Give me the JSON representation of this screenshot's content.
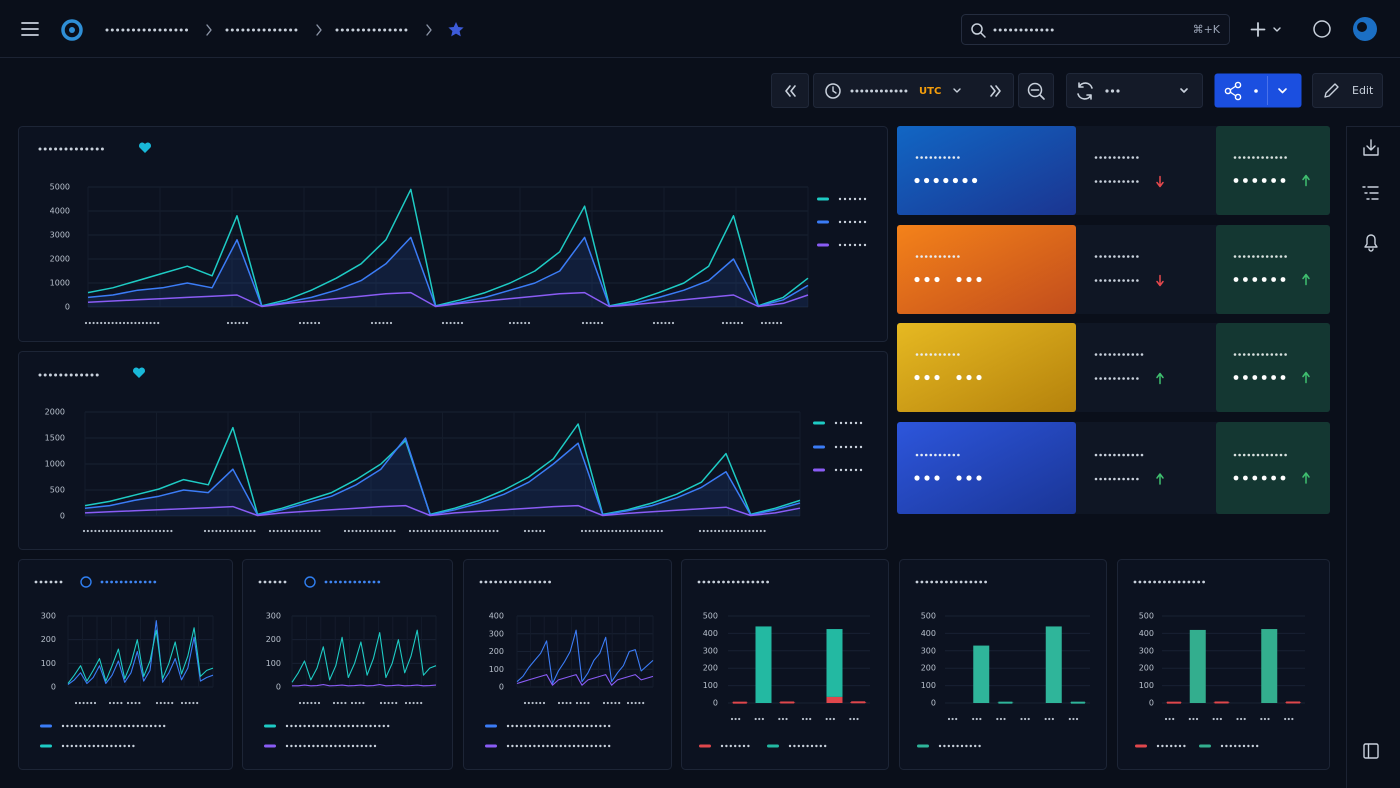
{
  "topbar": {
    "search_shortcut": "⌘+K"
  },
  "toolbar": {
    "timezone": "UTC",
    "edit": "Edit"
  },
  "chart_data": [
    {
      "type": "line",
      "ylim": [
        0,
        5000
      ],
      "yticks": [
        0,
        1000,
        2000,
        3000,
        4000,
        5000
      ],
      "grid": true,
      "series": [
        {
          "color": "#1ecbc4",
          "values": [
            600,
            800,
            1100,
            1400,
            1700,
            1300,
            3800,
            50,
            300,
            700,
            1200,
            1800,
            2800,
            4900,
            50,
            300,
            600,
            1000,
            1500,
            2300,
            4200,
            50,
            250,
            600,
            1000,
            1700,
            3800,
            50,
            400,
            1200
          ]
        },
        {
          "color": "#3b7cf6",
          "values": [
            400,
            500,
            700,
            800,
            1000,
            800,
            2800,
            30,
            200,
            400,
            700,
            1100,
            1800,
            2900,
            30,
            200,
            400,
            700,
            1000,
            1500,
            2900,
            30,
            150,
            400,
            700,
            1100,
            2000,
            30,
            300,
            900
          ]
        },
        {
          "color": "#8a5cf5",
          "values": [
            200,
            250,
            300,
            350,
            400,
            450,
            500,
            20,
            150,
            250,
            350,
            450,
            550,
            600,
            20,
            150,
            250,
            350,
            450,
            550,
            600,
            20,
            100,
            200,
            300,
            400,
            500,
            20,
            150,
            500
          ]
        }
      ]
    },
    {
      "type": "line",
      "ylim": [
        0,
        2000
      ],
      "yticks": [
        0,
        500,
        1000,
        1500,
        2000
      ],
      "grid": true,
      "series": [
        {
          "color": "#1ecbc4",
          "values": [
            200,
            280,
            400,
            520,
            700,
            600,
            1700,
            30,
            150,
            300,
            450,
            700,
            1000,
            1450,
            30,
            150,
            300,
            500,
            750,
            1100,
            1770,
            30,
            120,
            250,
            420,
            650,
            1200,
            30,
            150,
            300
          ]
        },
        {
          "color": "#3b7cf6",
          "values": [
            150,
            200,
            300,
            380,
            500,
            450,
            900,
            20,
            120,
            250,
            380,
            600,
            900,
            1500,
            20,
            120,
            250,
            420,
            650,
            1000,
            1400,
            20,
            100,
            200,
            350,
            550,
            850,
            20,
            120,
            250
          ]
        },
        {
          "color": "#8a5cf5",
          "values": [
            60,
            80,
            100,
            120,
            140,
            160,
            180,
            10,
            60,
            90,
            120,
            150,
            180,
            200,
            10,
            60,
            90,
            120,
            150,
            180,
            200,
            10,
            50,
            80,
            110,
            140,
            170,
            10,
            60,
            150
          ]
        }
      ]
    },
    {
      "type": "line",
      "ylim": [
        0,
        300
      ],
      "yticks": [
        0,
        100,
        200,
        300
      ],
      "grid": true,
      "series": [
        {
          "color": "#3b7cf6",
          "values": [
            10,
            30,
            60,
            15,
            40,
            90,
            15,
            50,
            110,
            20,
            60,
            150,
            25,
            70,
            280,
            20,
            60,
            120,
            30,
            80,
            210,
            25,
            40,
            50
          ]
        },
        {
          "color": "#1ecbc4",
          "values": [
            15,
            50,
            90,
            25,
            70,
            120,
            25,
            90,
            160,
            35,
            100,
            200,
            45,
            110,
            240,
            35,
            100,
            190,
            55,
            130,
            250,
            45,
            70,
            80
          ]
        }
      ]
    },
    {
      "type": "line",
      "ylim": [
        0,
        300
      ],
      "yticks": [
        0,
        100,
        200,
        300
      ],
      "grid": true,
      "series": [
        {
          "color": "#1ecbc4",
          "values": [
            20,
            60,
            110,
            30,
            80,
            170,
            30,
            90,
            210,
            40,
            100,
            190,
            50,
            120,
            230,
            40,
            100,
            200,
            60,
            130,
            240,
            50,
            80,
            90
          ]
        },
        {
          "color": "#8a5cf5",
          "values": [
            5,
            5,
            8,
            5,
            6,
            10,
            5,
            6,
            8,
            5,
            6,
            8,
            5,
            6,
            10,
            5,
            6,
            8,
            5,
            6,
            8,
            5,
            6,
            8
          ]
        }
      ]
    },
    {
      "type": "line",
      "ylim": [
        0,
        400
      ],
      "yticks": [
        0,
        100,
        200,
        300,
        400
      ],
      "grid": true,
      "series": [
        {
          "color": "#3b7cf6",
          "values": [
            30,
            60,
            110,
            150,
            190,
            260,
            20,
            90,
            140,
            200,
            320,
            30,
            80,
            150,
            190,
            280,
            30,
            80,
            120,
            200,
            210,
            90,
            120,
            150
          ]
        },
        {
          "color": "#8a5cf5",
          "values": [
            20,
            30,
            40,
            50,
            60,
            70,
            10,
            40,
            50,
            60,
            70,
            10,
            40,
            50,
            60,
            70,
            10,
            40,
            50,
            60,
            70,
            40,
            50,
            60
          ]
        }
      ]
    },
    {
      "type": "bar",
      "ylim": [
        0,
        500
      ],
      "yticks": [
        0,
        100,
        200,
        300,
        400,
        500
      ],
      "grid": true,
      "categories": [
        null,
        null,
        null,
        null,
        null,
        null
      ],
      "series": [
        {
          "color": "#e0474c",
          "values": [
            2,
            0,
            3,
            0,
            35,
            4
          ]
        },
        {
          "color": "#23b9a2",
          "values": [
            0,
            440,
            0,
            0,
            390,
            0
          ]
        }
      ]
    },
    {
      "type": "bar",
      "ylim": [
        0,
        500
      ],
      "yticks": [
        0,
        100,
        200,
        300,
        400,
        500
      ],
      "grid": true,
      "categories": [
        null,
        null,
        null,
        null,
        null,
        null
      ],
      "series": [
        {
          "color": "#2fb59a",
          "values": [
            0,
            330,
            2,
            0,
            440,
            2
          ]
        }
      ]
    },
    {
      "type": "bar",
      "ylim": [
        0,
        500
      ],
      "yticks": [
        0,
        100,
        200,
        300,
        400,
        500
      ],
      "grid": true,
      "categories": [
        null,
        null,
        null,
        null,
        null,
        null
      ],
      "series": [
        {
          "color": "#e0474c",
          "values": [
            2,
            0,
            3,
            0,
            0,
            3
          ]
        },
        {
          "color": "#33ae8e",
          "values": [
            0,
            420,
            0,
            0,
            425,
            0
          ]
        }
      ]
    }
  ]
}
